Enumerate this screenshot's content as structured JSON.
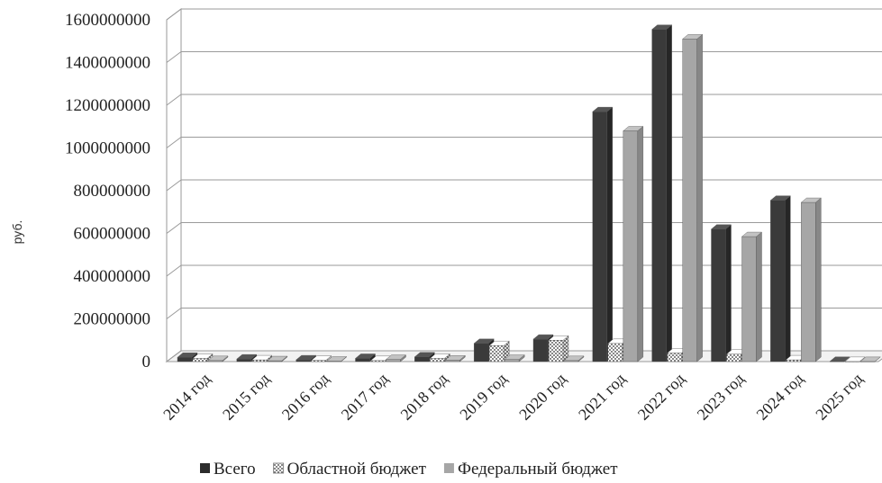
{
  "chart_data": {
    "type": "bar",
    "style": "3d-clustered",
    "ylabel": "руб.",
    "xlabel": "",
    "title": "",
    "ylim": [
      0,
      1600000000
    ],
    "y_ticks": [
      0,
      200000000,
      400000000,
      600000000,
      800000000,
      1000000000,
      1200000000,
      1400000000,
      1600000000
    ],
    "categories": [
      "2014 год",
      "2015 год",
      "2016 год",
      "2017 год",
      "2018 год",
      "2019 год",
      "2020 год",
      "2021 год",
      "2022 год",
      "2023 год",
      "2024 год",
      "2025 год"
    ],
    "series": [
      {
        "name": "Всего",
        "pattern": "solid-dark",
        "color": "#3a3a3a",
        "values": [
          20000000,
          12000000,
          8000000,
          15000000,
          22000000,
          85000000,
          105000000,
          1170000000,
          1555000000,
          620000000,
          755000000,
          1000000
        ]
      },
      {
        "name": "Областной бюджет",
        "pattern": "dots",
        "color": "#ffffff",
        "values": [
          15000000,
          8000000,
          6000000,
          5000000,
          15000000,
          75000000,
          100000000,
          85000000,
          40000000,
          35000000,
          8000000,
          500000
        ]
      },
      {
        "name": "Федеральный бюджет",
        "pattern": "solid-light",
        "color": "#a6a6a6",
        "values": [
          5000000,
          4000000,
          2000000,
          10000000,
          7000000,
          10000000,
          5000000,
          1080000000,
          1510000000,
          585000000,
          745000000,
          500000
        ]
      }
    ],
    "grid": true,
    "legend_position": "bottom"
  }
}
